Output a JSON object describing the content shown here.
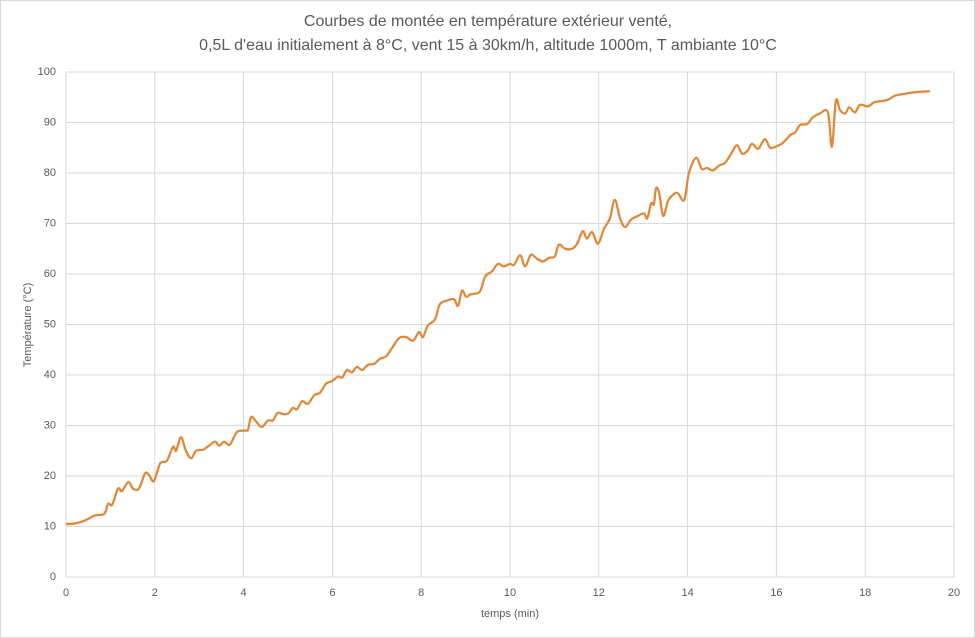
{
  "chart_data": {
    "type": "line",
    "title": [
      "Courbes de montée en température  extérieur venté,",
      "0,5L d'eau initialement à 8°C, vent 15 à 30km/h, altitude 1000m, T ambiante 10°C"
    ],
    "x_label": "temps (min)",
    "y_label": "Température (°C)",
    "xlim": [
      0,
      20
    ],
    "xticks": [
      0,
      2,
      4,
      6,
      8,
      10,
      12,
      14,
      16,
      18,
      20
    ],
    "ylim": [
      0,
      100
    ],
    "yticks": [
      0,
      10,
      20,
      30,
      40,
      50,
      60,
      70,
      80,
      90,
      100
    ],
    "grid": true,
    "x": [
      0,
      0.2,
      0.43,
      0.65,
      0.86,
      0.95,
      1.04,
      1.17,
      1.26,
      1.4,
      1.51,
      1.64,
      1.78,
      1.87,
      1.98,
      2.12,
      2.27,
      2.41,
      2.48,
      2.59,
      2.7,
      2.82,
      2.93,
      3.09,
      3.22,
      3.36,
      3.45,
      3.56,
      3.69,
      3.85,
      4.03,
      4.1,
      4.17,
      4.28,
      4.41,
      4.55,
      4.66,
      4.77,
      4.91,
      5.02,
      5.11,
      5.2,
      5.32,
      5.45,
      5.59,
      5.72,
      5.86,
      5.99,
      6.13,
      6.22,
      6.33,
      6.44,
      6.55,
      6.67,
      6.8,
      6.94,
      7.07,
      7.21,
      7.34,
      7.5,
      7.66,
      7.82,
      7.95,
      8.04,
      8.15,
      8.31,
      8.42,
      8.6,
      8.74,
      8.83,
      8.92,
      9.01,
      9.12,
      9.32,
      9.44,
      9.59,
      9.73,
      9.86,
      10.0,
      10.09,
      10.23,
      10.34,
      10.47,
      10.61,
      10.74,
      10.88,
      11.01,
      11.1,
      11.24,
      11.4,
      11.51,
      11.64,
      11.73,
      11.85,
      11.98,
      12.12,
      12.25,
      12.36,
      12.48,
      12.59,
      12.73,
      12.88,
      13.02,
      13.09,
      13.18,
      13.24,
      13.29,
      13.36,
      13.45,
      13.56,
      13.69,
      13.78,
      13.9,
      13.96,
      14.03,
      14.19,
      14.32,
      14.44,
      14.57,
      14.71,
      14.84,
      14.98,
      15.11,
      15.23,
      15.36,
      15.45,
      15.59,
      15.74,
      15.86,
      16.01,
      16.15,
      16.31,
      16.42,
      16.53,
      16.69,
      16.82,
      16.98,
      17.16,
      17.25,
      17.34,
      17.43,
      17.55,
      17.64,
      17.77,
      17.88,
      18.06,
      18.2,
      18.33,
      18.51,
      18.67,
      18.9,
      19.12,
      19.46
    ],
    "series": [
      {
        "color": "#e0883a",
        "values": [
          10.5,
          10.6,
          11.2,
          12.2,
          12.5,
          14.5,
          14.3,
          17.5,
          17,
          18.8,
          17.5,
          17.5,
          20.5,
          20.2,
          19,
          22.5,
          23,
          25.8,
          25,
          27.7,
          25,
          23.5,
          25,
          25.2,
          26,
          26.8,
          26,
          26.8,
          26.2,
          28.7,
          29,
          29.2,
          31.7,
          30.8,
          29.7,
          31,
          31,
          32.5,
          32.2,
          32.5,
          33.5,
          33.2,
          34.8,
          34.3,
          36,
          36.5,
          38.3,
          38.8,
          39.7,
          39.5,
          41,
          40.5,
          41.6,
          41,
          42,
          42.2,
          43.2,
          43.7,
          45.3,
          47.3,
          47.5,
          46.8,
          48.5,
          47.5,
          49.8,
          51,
          54,
          54.8,
          55,
          53.7,
          56.7,
          55.5,
          56,
          56.5,
          59.5,
          60.5,
          62,
          61.5,
          62,
          61.8,
          63.7,
          61.5,
          63.8,
          63,
          62.5,
          63.2,
          63.5,
          65.8,
          65,
          65,
          66,
          68.5,
          67,
          68.3,
          66,
          69,
          71,
          74.7,
          71,
          69.3,
          70.8,
          71.5,
          72,
          71,
          74,
          73.8,
          77,
          76,
          71.5,
          74.5,
          75.8,
          76,
          74.5,
          76,
          80,
          83,
          80.8,
          81,
          80.5,
          81.5,
          82,
          83.8,
          85.5,
          83.8,
          84.5,
          85.8,
          84.8,
          86.7,
          85,
          85.3,
          86,
          87.5,
          88,
          89.5,
          89.7,
          91,
          91.8,
          92,
          85.2,
          94.3,
          92.5,
          91.8,
          93,
          92,
          93.5,
          93.2,
          94,
          94.2,
          94.5,
          95.3,
          95.7,
          96,
          96.2
        ]
      }
    ]
  }
}
